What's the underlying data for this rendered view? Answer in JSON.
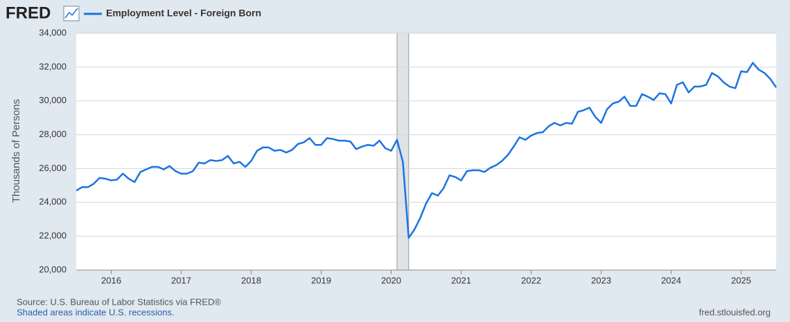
{
  "chart_data": {
    "type": "line",
    "logo": "FRED",
    "y_label": "Thousands of Persons",
    "source": "Source: U.S. Bureau of Labor Statistics via FRED®",
    "note": "Shaded areas indicate U.S. recessions.",
    "site": "fred.stlouisfed.org",
    "x": [
      2015.5,
      2015.583,
      2015.667,
      2015.75,
      2015.833,
      2015.917,
      2016,
      2016.083,
      2016.167,
      2016.25,
      2016.333,
      2016.417,
      2016.5,
      2016.583,
      2016.667,
      2016.75,
      2016.833,
      2016.917,
      2017,
      2017.083,
      2017.167,
      2017.25,
      2017.333,
      2017.417,
      2017.5,
      2017.583,
      2017.667,
      2017.75,
      2017.833,
      2017.917,
      2018,
      2018.083,
      2018.167,
      2018.25,
      2018.333,
      2018.417,
      2018.5,
      2018.583,
      2018.667,
      2018.75,
      2018.833,
      2018.917,
      2019,
      2019.083,
      2019.167,
      2019.25,
      2019.333,
      2019.417,
      2019.5,
      2019.583,
      2019.667,
      2019.75,
      2019.833,
      2019.917,
      2020,
      2020.083,
      2020.167,
      2020.25,
      2020.333,
      2020.417,
      2020.5,
      2020.583,
      2020.667,
      2020.75,
      2020.833,
      2020.917,
      2021,
      2021.083,
      2021.167,
      2021.25,
      2021.333,
      2021.417,
      2021.5,
      2021.583,
      2021.667,
      2021.75,
      2021.833,
      2021.917,
      2022,
      2022.083,
      2022.167,
      2022.25,
      2022.333,
      2022.417,
      2022.5,
      2022.583,
      2022.667,
      2022.75,
      2022.833,
      2022.917,
      2023,
      2023.083,
      2023.167,
      2023.25,
      2023.333,
      2023.417,
      2023.5,
      2023.583,
      2023.667,
      2023.75,
      2023.833,
      2023.917,
      2024,
      2024.083,
      2024.167,
      2024.25,
      2024.333,
      2024.417,
      2024.5,
      2024.583,
      2024.667,
      2024.75,
      2024.833,
      2024.917,
      2025,
      2025.083,
      2025.167,
      2025.25,
      2025.333,
      2025.417,
      2025.5
    ],
    "series": [
      {
        "name": "Employment Level - Foreign Born",
        "color": "#1a73e0",
        "values": [
          24700,
          24900,
          24900,
          25100,
          25450,
          25400,
          25300,
          25350,
          25700,
          25400,
          25200,
          25800,
          25950,
          26100,
          26100,
          25950,
          26150,
          25850,
          25700,
          25700,
          25850,
          26350,
          26300,
          26500,
          26450,
          26500,
          26750,
          26300,
          26400,
          26100,
          26450,
          27050,
          27250,
          27250,
          27050,
          27100,
          26950,
          27100,
          27450,
          27550,
          27800,
          27400,
          27400,
          27800,
          27750,
          27650,
          27650,
          27600,
          27150,
          27300,
          27400,
          27350,
          27650,
          27200,
          27050,
          27700,
          26400,
          21900,
          22400,
          23100,
          23950,
          24550,
          24400,
          24850,
          25600,
          25500,
          25300,
          25850,
          25900,
          25900,
          25800,
          26050,
          26200,
          26450,
          26800,
          27300,
          27850,
          27700,
          27950,
          28100,
          28150,
          28500,
          28700,
          28550,
          28700,
          28650,
          29350,
          29450,
          29600,
          29050,
          28700,
          29500,
          29850,
          29950,
          30250,
          29700,
          29700,
          30400,
          30250,
          30050,
          30450,
          30400,
          29850,
          30950,
          31100,
          30500,
          30850,
          30850,
          30950,
          31650,
          31450,
          31100,
          30850,
          30750,
          31750,
          31700,
          32250,
          31850,
          31650,
          31300,
          30800
        ]
      }
    ],
    "recessions": [
      {
        "start": 2020.083,
        "end": 2020.25
      }
    ],
    "xlim": [
      2015.5,
      2025.5
    ],
    "xticks": [
      2016,
      2017,
      2018,
      2019,
      2020,
      2021,
      2022,
      2023,
      2024,
      2025
    ],
    "ylim": [
      20000,
      34000
    ],
    "yticks": [
      {
        "value": 20000,
        "label": "20,000"
      },
      {
        "value": 22000,
        "label": "22,000"
      },
      {
        "value": 24000,
        "label": "24,000"
      },
      {
        "value": 26000,
        "label": "26,000"
      },
      {
        "value": 28000,
        "label": "28,000"
      },
      {
        "value": 30000,
        "label": "30,000"
      },
      {
        "value": 32000,
        "label": "32,000"
      },
      {
        "value": 34000,
        "label": "34,000"
      }
    ],
    "grid": true
  }
}
